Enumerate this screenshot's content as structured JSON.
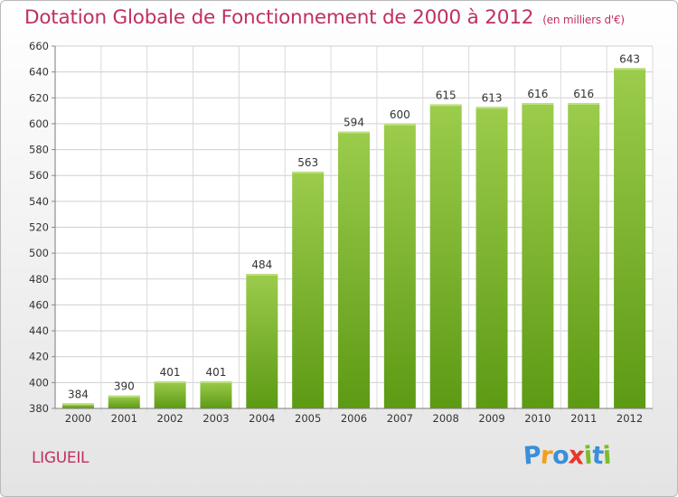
{
  "chart_data": {
    "type": "bar",
    "title": "Dotation Globale de Fonctionnement de 2000 à 2012",
    "unit": "(en milliers d'€)",
    "categories": [
      "2000",
      "2001",
      "2002",
      "2003",
      "2004",
      "2005",
      "2006",
      "2007",
      "2008",
      "2009",
      "2010",
      "2011",
      "2012"
    ],
    "values": [
      384,
      390,
      401,
      401,
      484,
      563,
      594,
      600,
      615,
      613,
      616,
      616,
      643
    ],
    "ylim": [
      380,
      660
    ],
    "yticks": [
      380,
      400,
      420,
      440,
      460,
      480,
      500,
      520,
      540,
      560,
      580,
      600,
      620,
      640,
      660
    ],
    "xlabel": "",
    "ylabel": "",
    "grid": true,
    "colors": {
      "bar_light": "#9ccc4c",
      "bar_dark": "#5d9a14",
      "accent": "#c0305e"
    }
  },
  "place": "LIGUEIL",
  "logo": {
    "text": "Proxiti",
    "letter_colors": [
      "#3a8fd9",
      "#f0a020",
      "#3a8fd9",
      "#e8362b",
      "#7cbc2a",
      "#3a8fd9",
      "#7cbc2a"
    ]
  }
}
